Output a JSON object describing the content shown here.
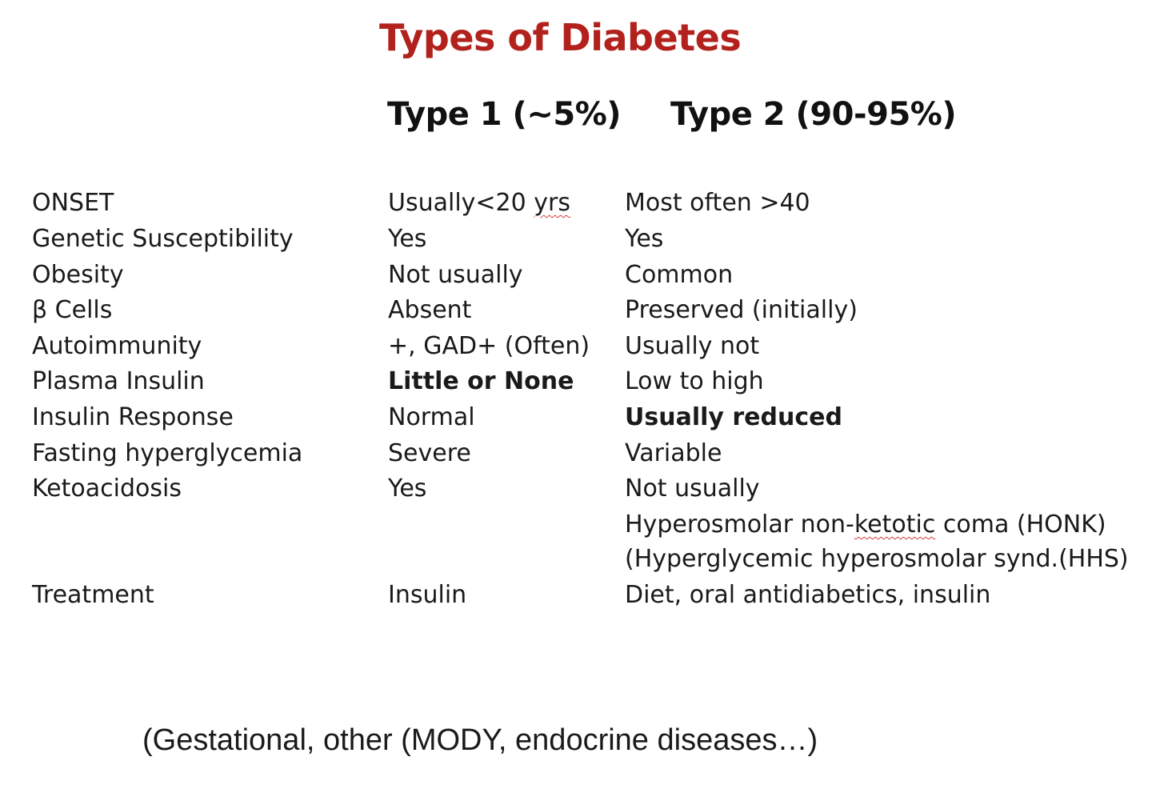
{
  "title": "Types of Diabetes",
  "columns": {
    "type1": "Type 1 (~5%)",
    "type2": "Type 2 (90-95%)"
  },
  "rows": [
    {
      "label": "ONSET",
      "type1_pre": "Usually<20 ",
      "type1_sq": "yrs",
      "type2": "Most often >40"
    },
    {
      "label": "Genetic Susceptibility",
      "type1": "Yes",
      "type2": "Yes"
    },
    {
      "label": "Obesity",
      "type1": "Not usually",
      "type2": "Common"
    },
    {
      "label": "β Cells",
      "type1": "Absent",
      "type2": "Preserved (initially)"
    },
    {
      "label": "Autoimmunity",
      "type1": "+, GAD+ (Often)",
      "type2": "Usually not"
    },
    {
      "label": "Plasma Insulin",
      "type1": "Little or None",
      "type2": "Low to high"
    },
    {
      "label": "Insulin Response",
      "type1": "Normal",
      "type2": "Usually reduced"
    },
    {
      "label": "Fasting hyperglycemia",
      "type1": "Severe",
      "type2": "Variable"
    },
    {
      "label": "Ketoacidosis",
      "type1": "Yes",
      "type2": "Not usually"
    },
    {
      "label": "",
      "type1": "",
      "type2_pre": "Hyperosmolar non-",
      "type2_sq": "ketotic",
      "type2_post": " coma (HONK)"
    },
    {
      "label": "",
      "type1": "",
      "type2": "(Hyperglycemic hyperosmolar synd.(HHS)"
    },
    {
      "label": "Treatment",
      "type1": "Insulin",
      "type2": "Diet, oral antidiabetics, insulin"
    }
  ],
  "footnote": "(Gestational, other (MODY,  endocrine diseases…)"
}
